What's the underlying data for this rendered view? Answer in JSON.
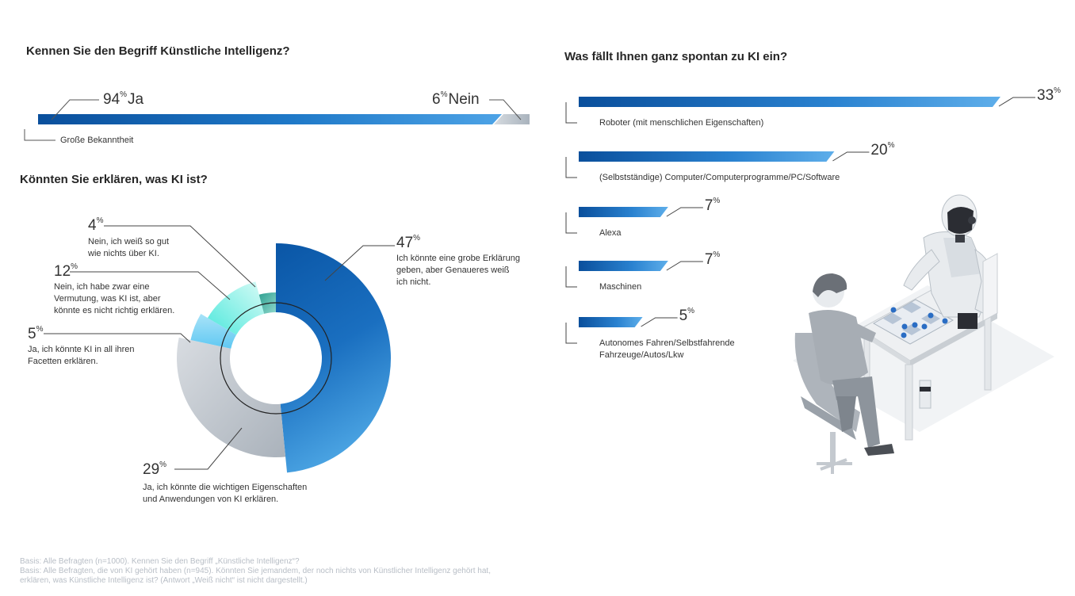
{
  "awareness": {
    "title": "Kennen Sie den Begriff Künstliche Intelligenz?",
    "ja_value": "94",
    "ja_label": "Ja",
    "nein_value": "6",
    "nein_label": "Nein",
    "note": "Große Bekanntheit",
    "pct_sign": "%"
  },
  "explain": {
    "title": "Könnten Sie erklären, was KI ist?"
  },
  "associations": {
    "title": "Was fällt Ihnen ganz spontan zu KI ein?"
  },
  "chart_data": [
    {
      "type": "bar",
      "title": "Kennen Sie den Begriff Künstliche Intelligenz?",
      "categories": [
        "Ja",
        "Nein"
      ],
      "values": [
        94,
        6
      ],
      "colors": [
        "#0a5aa8",
        "#b9c2cc"
      ]
    },
    {
      "type": "pie",
      "title": "Könnten Sie erklären, was KI ist?",
      "slices": [
        {
          "value": 47,
          "label": "Ich könnte eine grobe Erklärung geben, aber Genaueres weiß ich nicht.",
          "lines": [
            "Ich könnte eine grobe Erklärung",
            "geben, aber Genaueres weiß",
            "ich nicht."
          ],
          "color": "#0a5aa8"
        },
        {
          "value": 29,
          "label": "Ja, ich könnte die wichtigen Eigenschaften und Anwendungen von KI erklären.",
          "lines": [
            "Ja, ich könnte die wichtigen Eigenschaften",
            "und Anwendungen von KI erklären."
          ],
          "color": "#c7ccd3"
        },
        {
          "value": 5,
          "label": "Ja, ich könnte KI in all ihren Facetten erklären.",
          "lines": [
            "Ja, ich könnte KI in all ihren",
            "Facetten erklären."
          ],
          "color": "#7fd3f5"
        },
        {
          "value": 12,
          "label": "Nein, ich habe zwar eine Vermutung, was KI ist, aber könnte es nicht richtig erklären.",
          "lines": [
            "Nein, ich habe zwar eine",
            "Vermutung, was KI ist, aber",
            "könnte es nicht richtig erklären."
          ],
          "color": "#7ff0e6"
        },
        {
          "value": 4,
          "label": "Nein, ich weiß so gut wie nichts über KI.",
          "lines": [
            "Nein, ich weiß so gut",
            "wie nichts über KI."
          ],
          "color": "#3fae9e"
        }
      ]
    },
    {
      "type": "bar",
      "title": "Was fällt Ihnen ganz spontan zu KI ein?",
      "categories": [
        "Roboter (mit menschlichen Eigenschaften)",
        "(Selbstständige) Computer/Computerprogramme/PC/Software",
        "Alexa",
        "Maschinen",
        "Autonomes Fahren/Selbstfahrende Fahrzeuge/Autos/Lkw"
      ],
      "category_lines": [
        [
          "Roboter (mit menschlichen Eigenschaften)"
        ],
        [
          "(Selbstständige) Computer/Computerprogramme/PC/Software"
        ],
        [
          "Alexa"
        ],
        [
          "Maschinen"
        ],
        [
          "Autonomes Fahren/Selbstfahrende",
          "Fahrzeuge/Autos/Lkw"
        ]
      ],
      "values": [
        33,
        20,
        7,
        7,
        5
      ],
      "color": "#0a5aa8"
    }
  ],
  "footnote": {
    "line1": "Basis: Alle Befragten (n=1000). Kennen Sie den Begriff „Künstliche Intelligenz“?",
    "line2": "Basis: Alle Befragten, die von KI gehört haben (n=945). Könnten Sie jemandem, der noch nichts von Künstlicher Intelligenz gehört hat,",
    "line3": "erklären, was Künstliche Intelligenz ist? (Antwort „Weiß nicht“ ist nicht dargestellt.)"
  },
  "illustration": {
    "name": "robot-playing-chess-illustration"
  }
}
